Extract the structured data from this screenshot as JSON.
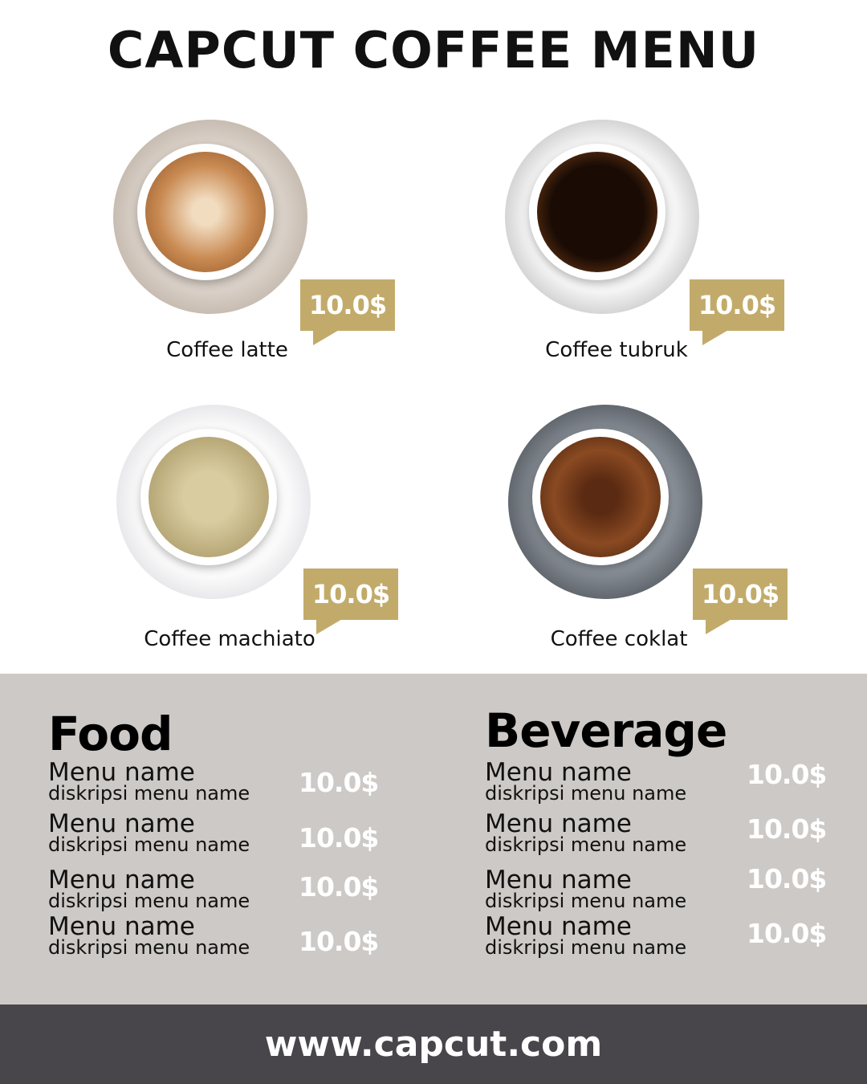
{
  "title": "CAPCUT COFFEE MENU",
  "products": [
    {
      "name": "Coffee latte",
      "price": "10.0$"
    },
    {
      "name": "Coffee tubruk",
      "price": "10.0$"
    },
    {
      "name": "Coffee machiato",
      "price": "10.0$"
    },
    {
      "name": "Coffee coklat",
      "price": "10.0$"
    }
  ],
  "colors": {
    "accent": "#c2ab6a",
    "panel": "#cdc9c6",
    "footer": "#48464b"
  },
  "food": {
    "heading": "Food",
    "items": [
      {
        "name": "Menu name",
        "desc": "diskripsi menu name",
        "price": "10.0$"
      },
      {
        "name": "Menu name",
        "desc": "diskripsi menu name",
        "price": "10.0$"
      },
      {
        "name": "Menu name",
        "desc": "diskripsi menu name",
        "price": "10.0$"
      },
      {
        "name": "Menu name",
        "desc": "diskripsi menu name",
        "price": "10.0$"
      }
    ]
  },
  "beverage": {
    "heading": "Beverage",
    "items": [
      {
        "name": "Menu name",
        "desc": "diskripsi menu name",
        "price": "10.0$"
      },
      {
        "name": "Menu name",
        "desc": "diskripsi menu name",
        "price": "10.0$"
      },
      {
        "name": "Menu name",
        "desc": "diskripsi menu name",
        "price": "10.0$"
      },
      {
        "name": "Menu name",
        "desc": "diskripsi menu name",
        "price": "10.0$"
      }
    ]
  },
  "footer": "www.capcut.com"
}
